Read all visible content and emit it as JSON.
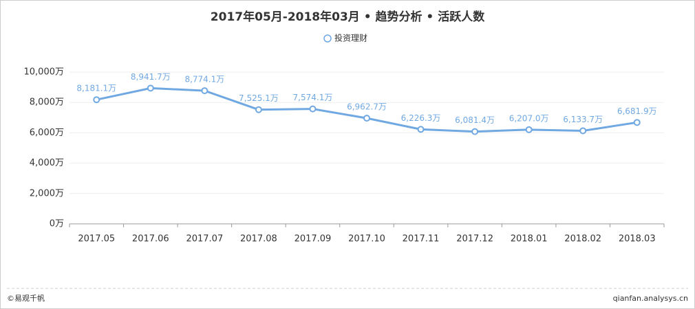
{
  "chart_data": {
    "type": "line",
    "title": "2017年05月-2018年03月 • 趋势分析 • 活跃人数",
    "categories": [
      "2017.05",
      "2017.06",
      "2017.07",
      "2017.08",
      "2017.09",
      "2017.10",
      "2017.11",
      "2017.12",
      "2018.01",
      "2018.02",
      "2018.03"
    ],
    "series": [
      {
        "name": "投资理财",
        "color": "#70a8e2",
        "values": [
          8181.1,
          8941.7,
          8774.1,
          7525.1,
          7574.1,
          6962.7,
          6226.3,
          6081.4,
          6207.0,
          6133.7,
          6681.9
        ],
        "value_labels": [
          "8,181.1万",
          "8,941.7万",
          "8,774.1万",
          "7,525.1万",
          "7,574.1万",
          "6,962.7万",
          "6,226.3万",
          "6,081.4万",
          "6,207.0万",
          "6,133.7万",
          "6,681.9万"
        ]
      }
    ],
    "ylim": [
      0,
      10000
    ],
    "yticks": [
      {
        "value": 0,
        "label": "0万"
      },
      {
        "value": 2000,
        "label": "2,000万"
      },
      {
        "value": 4000,
        "label": "4,000万"
      },
      {
        "value": 6000,
        "label": "6,000万"
      },
      {
        "value": 8000,
        "label": "8,000万"
      },
      {
        "value": 10000,
        "label": "10,000万"
      }
    ],
    "grid": true
  },
  "footer": {
    "left": "©易观千帆",
    "right": "qianfan.analysys.cn"
  }
}
